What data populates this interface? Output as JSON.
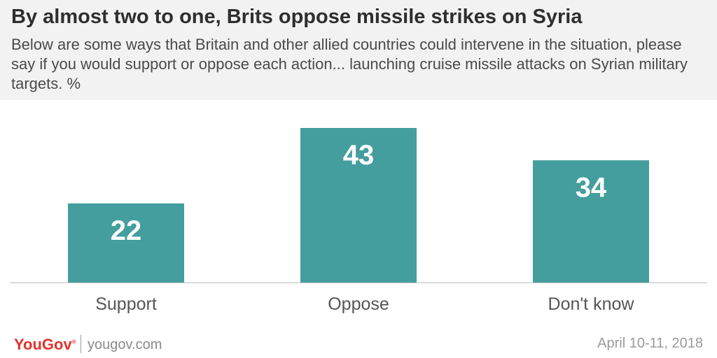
{
  "chart_data": {
    "type": "bar",
    "title": "By almost two to one, Brits oppose missile strikes on Syria",
    "subtitle": "Below are some ways that Britain and other allied countries could intervene in the situation, please say if you would support or oppose each action... launching cruise missile attacks on Syrian military targets. %",
    "categories": [
      "Support",
      "Oppose",
      "Don't know"
    ],
    "values": [
      22,
      43,
      34
    ],
    "ylim": [
      0,
      43
    ],
    "bar_color": "#449e9e",
    "label_color": "#ffffff",
    "grid": false,
    "legend": "none"
  },
  "footer": {
    "brand": "YouGov",
    "brand_color": "#e5322d",
    "site": "yougov.com",
    "date": "April 10-11, 2018"
  }
}
